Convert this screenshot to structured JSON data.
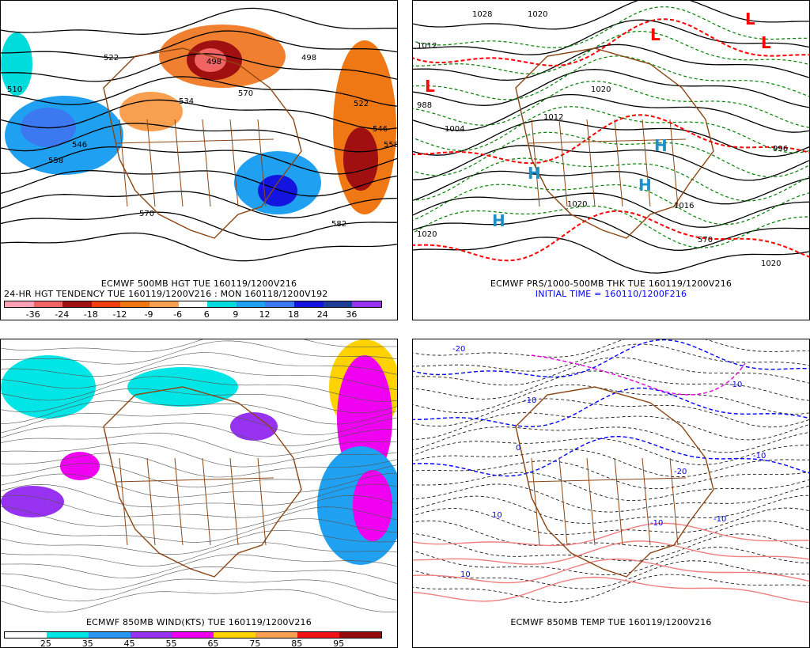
{
  "panels": [
    {
      "caption1": "ECMWF 500MB HGT TUE 160119/1200V216",
      "caption2": "24-HR HGT TENDENCY TUE 160119/1200V216 : MON 160118/1200V192",
      "colorbar": {
        "colors": [
          "#ffa0b4",
          "#f06464",
          "#a01010",
          "#f04010",
          "#f07814",
          "#f8a050",
          "#ffffff",
          "#00dcdc",
          "#20a0f0",
          "#3c78f0",
          "#1414e0",
          "#1e3c96",
          "#9632f0"
        ],
        "ticks": [
          "-36",
          "-24",
          "-18",
          "-12",
          "-9",
          "-6",
          "6",
          "9",
          "12",
          "18",
          "24",
          "36"
        ]
      },
      "contour_labels": [
        "522",
        "498",
        "510",
        "534",
        "546",
        "558",
        "570",
        "582",
        "522",
        "546",
        "558",
        "570",
        "498"
      ]
    },
    {
      "caption1": "ECMWF PRS/1000-500MB THK TUE 160119/1200V216",
      "caption2": "INITIAL TIME = 160110/1200F216",
      "highs": [
        "H",
        "H",
        "H",
        "H"
      ],
      "lows": [
        "L",
        "L",
        "L",
        "L"
      ],
      "contour_labels": [
        "1028",
        "1020",
        "1012",
        "1004",
        "988",
        "1012",
        "1020",
        "996",
        "1020",
        "1020",
        "570",
        "1020",
        "1016"
      ]
    },
    {
      "caption1": "ECMWF 850MB WIND(KTS) TUE 160119/1200V216",
      "colorbar": {
        "colors": [
          "#ffffff",
          "#00e6e6",
          "#2896f0",
          "#9632f0",
          "#f000f0",
          "#ffd200",
          "#f8a050",
          "#f01414",
          "#960a0a"
        ],
        "ticks": [
          "25",
          "35",
          "45",
          "55",
          "65",
          "75",
          "85",
          "95"
        ]
      }
    },
    {
      "caption1": "ECMWF 850MB TEMP TUE 160119/1200V216",
      "contour_labels": [
        "-10",
        "-10",
        "-10",
        "-10",
        "-20",
        "-20",
        "-10",
        "10",
        "10",
        "0"
      ]
    }
  ]
}
